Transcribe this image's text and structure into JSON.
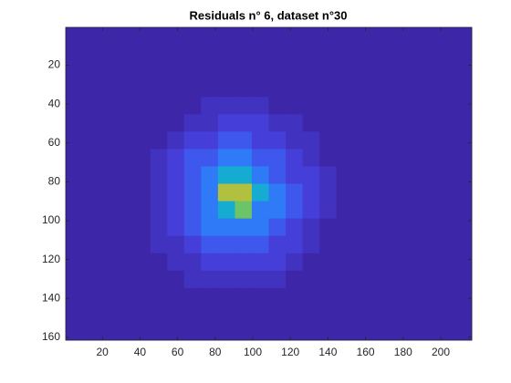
{
  "chart_data": {
    "type": "heatmap",
    "title": "Residuals n° 6, dataset n°30",
    "xlim": [
      0.5,
      216.5
    ],
    "ylim": [
      0.5,
      161.5
    ],
    "y_reversed": true,
    "xticks": [
      20,
      40,
      60,
      80,
      100,
      120,
      140,
      160,
      180,
      200
    ],
    "yticks": [
      20,
      40,
      60,
      80,
      100,
      120,
      140,
      160
    ],
    "clim": [
      0.1,
      1
    ],
    "colormap": [
      "#3e26a8",
      "#4745e6",
      "#2c7df8",
      "#13a9d6",
      "#2fbf9f",
      "#8cc64a",
      "#e0b930",
      "#f9fb15"
    ],
    "values": [
      [
        0.1,
        0.1,
        0.1,
        0.1,
        0.1,
        0.1,
        0.1,
        0.1,
        0.1,
        0.1,
        0.1,
        0.1,
        0.1,
        0.1,
        0.1,
        0.1,
        0.1,
        0.1,
        0.1,
        0.1,
        0.1,
        0.1,
        0.1,
        0.1
      ],
      [
        0.1,
        0.1,
        0.1,
        0.1,
        0.1,
        0.1,
        0.1,
        0.1,
        0.1,
        0.1,
        0.1,
        0.1,
        0.1,
        0.1,
        0.1,
        0.1,
        0.1,
        0.1,
        0.1,
        0.1,
        0.1,
        0.1,
        0.1,
        0.1
      ],
      [
        0.1,
        0.1,
        0.1,
        0.1,
        0.1,
        0.1,
        0.1,
        0.1,
        0.1,
        0.1,
        0.1,
        0.1,
        0.1,
        0.1,
        0.1,
        0.1,
        0.1,
        0.1,
        0.1,
        0.1,
        0.1,
        0.1,
        0.1,
        0.1
      ],
      [
        0.1,
        0.1,
        0.1,
        0.1,
        0.1,
        0.1,
        0.1,
        0.1,
        0.1,
        0.1,
        0.1,
        0.1,
        0.1,
        0.1,
        0.1,
        0.1,
        0.1,
        0.1,
        0.1,
        0.1,
        0.1,
        0.1,
        0.1,
        0.1
      ],
      [
        0.1,
        0.1,
        0.1,
        0.1,
        0.1,
        0.1,
        0.1,
        0.1,
        0.15,
        0.15,
        0.15,
        0.15,
        0.1,
        0.1,
        0.1,
        0.1,
        0.1,
        0.1,
        0.1,
        0.1,
        0.1,
        0.1,
        0.1,
        0.1
      ],
      [
        0.1,
        0.1,
        0.1,
        0.1,
        0.1,
        0.1,
        0.1,
        0.15,
        0.15,
        0.2,
        0.2,
        0.2,
        0.15,
        0.15,
        0.1,
        0.1,
        0.1,
        0.1,
        0.1,
        0.1,
        0.1,
        0.1,
        0.1,
        0.1
      ],
      [
        0.1,
        0.1,
        0.1,
        0.1,
        0.1,
        0.1,
        0.15,
        0.2,
        0.2,
        0.27,
        0.27,
        0.2,
        0.2,
        0.15,
        0.15,
        0.1,
        0.1,
        0.1,
        0.1,
        0.1,
        0.1,
        0.1,
        0.1,
        0.1
      ],
      [
        0.1,
        0.1,
        0.1,
        0.1,
        0.1,
        0.15,
        0.2,
        0.27,
        0.27,
        0.35,
        0.35,
        0.27,
        0.27,
        0.2,
        0.15,
        0.1,
        0.1,
        0.1,
        0.1,
        0.1,
        0.1,
        0.1,
        0.1,
        0.1
      ],
      [
        0.1,
        0.1,
        0.1,
        0.1,
        0.1,
        0.15,
        0.2,
        0.27,
        0.35,
        0.5,
        0.5,
        0.35,
        0.27,
        0.2,
        0.2,
        0.15,
        0.1,
        0.1,
        0.1,
        0.1,
        0.1,
        0.1,
        0.1,
        0.1
      ],
      [
        0.1,
        0.1,
        0.1,
        0.1,
        0.1,
        0.15,
        0.2,
        0.27,
        0.35,
        0.8,
        0.8,
        0.5,
        0.35,
        0.27,
        0.2,
        0.15,
        0.1,
        0.1,
        0.1,
        0.1,
        0.1,
        0.1,
        0.1,
        0.1
      ],
      [
        0.1,
        0.1,
        0.1,
        0.1,
        0.1,
        0.15,
        0.2,
        0.27,
        0.35,
        0.5,
        0.7,
        0.35,
        0.35,
        0.27,
        0.2,
        0.15,
        0.1,
        0.1,
        0.1,
        0.1,
        0.1,
        0.1,
        0.1,
        0.1
      ],
      [
        0.1,
        0.1,
        0.1,
        0.1,
        0.1,
        0.15,
        0.2,
        0.27,
        0.35,
        0.35,
        0.35,
        0.35,
        0.27,
        0.2,
        0.15,
        0.1,
        0.1,
        0.1,
        0.1,
        0.1,
        0.1,
        0.1,
        0.1,
        0.1
      ],
      [
        0.1,
        0.1,
        0.1,
        0.1,
        0.1,
        0.15,
        0.15,
        0.2,
        0.27,
        0.27,
        0.27,
        0.27,
        0.2,
        0.2,
        0.15,
        0.1,
        0.1,
        0.1,
        0.1,
        0.1,
        0.1,
        0.1,
        0.1,
        0.1
      ],
      [
        0.1,
        0.1,
        0.1,
        0.1,
        0.1,
        0.1,
        0.15,
        0.15,
        0.2,
        0.2,
        0.2,
        0.2,
        0.2,
        0.15,
        0.1,
        0.1,
        0.1,
        0.1,
        0.1,
        0.1,
        0.1,
        0.1,
        0.1,
        0.1
      ],
      [
        0.1,
        0.1,
        0.1,
        0.1,
        0.1,
        0.1,
        0.1,
        0.15,
        0.15,
        0.15,
        0.15,
        0.15,
        0.15,
        0.1,
        0.1,
        0.1,
        0.1,
        0.1,
        0.1,
        0.1,
        0.1,
        0.1,
        0.1,
        0.1
      ],
      [
        0.1,
        0.1,
        0.1,
        0.1,
        0.1,
        0.1,
        0.1,
        0.1,
        0.1,
        0.1,
        0.1,
        0.1,
        0.1,
        0.1,
        0.1,
        0.1,
        0.1,
        0.1,
        0.1,
        0.1,
        0.1,
        0.1,
        0.1,
        0.1
      ],
      [
        0.1,
        0.1,
        0.1,
        0.1,
        0.1,
        0.1,
        0.1,
        0.1,
        0.1,
        0.1,
        0.1,
        0.1,
        0.1,
        0.1,
        0.1,
        0.1,
        0.1,
        0.1,
        0.1,
        0.1,
        0.1,
        0.1,
        0.1,
        0.1
      ],
      [
        0.1,
        0.1,
        0.1,
        0.1,
        0.1,
        0.1,
        0.1,
        0.1,
        0.1,
        0.1,
        0.1,
        0.1,
        0.1,
        0.1,
        0.1,
        0.1,
        0.1,
        0.1,
        0.1,
        0.1,
        0.1,
        0.1,
        0.1,
        0.1
      ]
    ]
  }
}
